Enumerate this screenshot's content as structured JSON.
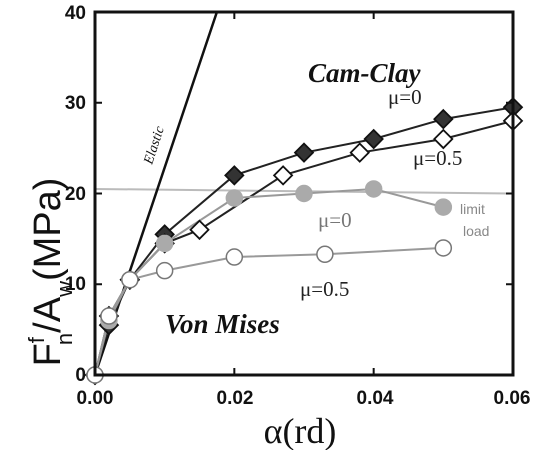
{
  "chart_data": {
    "type": "line",
    "title": "",
    "xlabel": "α(rd)",
    "ylabel": "F",
    "ylabel_sup": "f",
    "ylabel_sub": "n",
    "ylabel_rest": "/A",
    "ylabel_sub2": "w",
    "ylabel_unit": "(MPa)",
    "xlim": [
      0,
      0.06
    ],
    "ylim": [
      0,
      40
    ],
    "xticks": [
      "0.00",
      "0.02",
      "0.04",
      "0.06"
    ],
    "yticks": [
      "0",
      "10",
      "20",
      "30",
      "40"
    ],
    "series": [
      {
        "name": "",
        "color": "#111111",
        "marker": "none",
        "x": [
          0,
          0.0175
        ],
        "y": [
          0,
          40
        ]
      },
      {
        "name": "",
        "color": "#222222",
        "marker": "filled-diamond",
        "x": [
          0,
          0.002,
          0.005,
          0.01,
          0.02,
          0.03,
          0.04,
          0.05,
          0.06
        ],
        "y": [
          0,
          5.5,
          10.5,
          15.5,
          22,
          24.5,
          26,
          28.2,
          29.5
        ]
      },
      {
        "name": "",
        "color": "#222222",
        "marker": "open-diamond",
        "x": [
          0,
          0.002,
          0.005,
          0.01,
          0.015,
          0.027,
          0.038,
          0.05,
          0.06
        ],
        "y": [
          0,
          6.5,
          10.5,
          14.5,
          16,
          22,
          24.5,
          26,
          28
        ]
      },
      {
        "name": "",
        "color": "#999999",
        "marker": "filled-circle",
        "x": [
          0,
          0.002,
          0.005,
          0.01,
          0.02,
          0.03,
          0.04,
          0.05
        ],
        "y": [
          0,
          6,
          10.5,
          14.5,
          19.5,
          20,
          20.5,
          18.5
        ]
      },
      {
        "name": "",
        "color": "#999999",
        "marker": "open-circle",
        "x": [
          0,
          0.002,
          0.005,
          0.01,
          0.02,
          0.033,
          0.05
        ],
        "y": [
          0,
          6.5,
          10.5,
          11.5,
          13,
          13.3,
          14
        ]
      }
    ],
    "reference_line": {
      "color": "#bbbbbb",
      "y_start": 20.5,
      "y_end": 20
    },
    "annotations": {
      "cam_clay": "Cam-Clay",
      "von_mises": "Von Mises",
      "elastic": "Elastic",
      "mu0_cc": "μ=0",
      "mu05_cc": "μ=0.5",
      "mu0_vm": "μ=0",
      "mu05_vm": "μ=0.5",
      "limit": "limit",
      "load": "load"
    }
  }
}
